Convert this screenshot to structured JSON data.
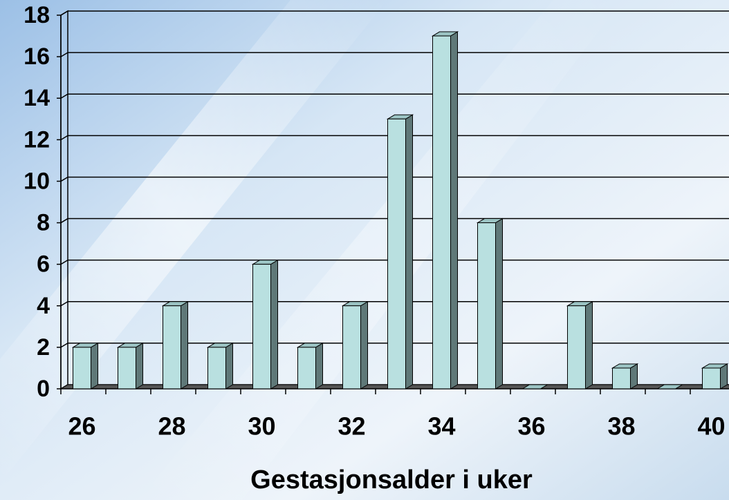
{
  "chart_data": {
    "type": "bar",
    "x_label": "Gestasjonsalder i uker",
    "categories": [
      26,
      null,
      28,
      null,
      30,
      null,
      32,
      null,
      34,
      null,
      36,
      null,
      38,
      null,
      40
    ],
    "values": [
      2,
      2,
      4,
      2,
      6,
      2,
      4,
      13,
      17,
      8,
      0,
      4,
      1,
      0,
      1
    ],
    "color": "#b9e0e0",
    "ylim": [
      0,
      18
    ],
    "yticks": [
      0,
      2,
      4,
      6,
      8,
      10,
      12,
      14,
      16,
      18
    ],
    "grid": true
  }
}
